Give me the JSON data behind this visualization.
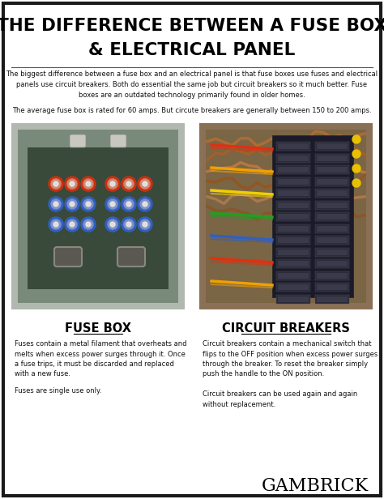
{
  "title_line1": "THE DIFFERENCE BETWEEN A FUSE BOX",
  "title_line2": "& ELECTRICAL PANEL",
  "intro_text": "The biggest difference between a fuse box and an electrical panel is that fuse boxes use fuses and electrical\npanels use circuit breakers. Both do essential the same job but circuit breakers so it much better. Fuse\nboxes are an outdated technology primarily found in older homes.",
  "avg_text": "The average fuse box is rated for 60 amps. But circute breakers are generally between 150 to 200 amps.",
  "left_label": "FUSE BOX",
  "right_label": "CIRCUIT BREAKERS",
  "left_desc1": "Fuses contain a metal filament that overheats and\nmelts when excess power surges through it. Once\na fuse trips, it must be discarded and replaced\nwith a new fuse.",
  "left_desc2": "Fuses are single use only.",
  "right_desc1": "Circuit breakers contain a mechanical switch that\nflips to the OFF position when excess power surges\nthrough the breaker. To reset the breaker simply\npush the handle to the ON position.",
  "right_desc2": "Circuit breakers can be used again and again\nwithout replacement.",
  "brand": "GAMBRICK",
  "bg_color": "#ffffff",
  "border_color": "#1a1a1a",
  "title_color": "#000000",
  "text_color": "#111111"
}
